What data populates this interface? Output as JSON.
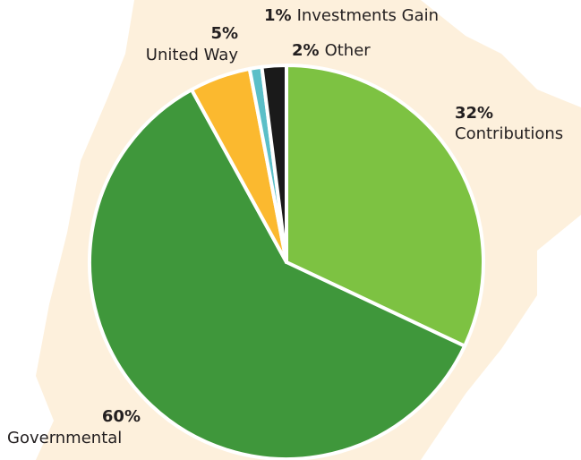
{
  "chart_data": {
    "type": "pie",
    "categories": [
      "Contributions",
      "Governmental",
      "United Way",
      "Investments Gain",
      "Other"
    ],
    "values": [
      32,
      60,
      5,
      1,
      2
    ],
    "value_labels": [
      "32%",
      "60%",
      "5%",
      "1%",
      "2%"
    ],
    "colors": [
      "#7dc242",
      "#3f973b",
      "#fbb92f",
      "#5bbfc8",
      "#1a1a1a"
    ]
  }
}
